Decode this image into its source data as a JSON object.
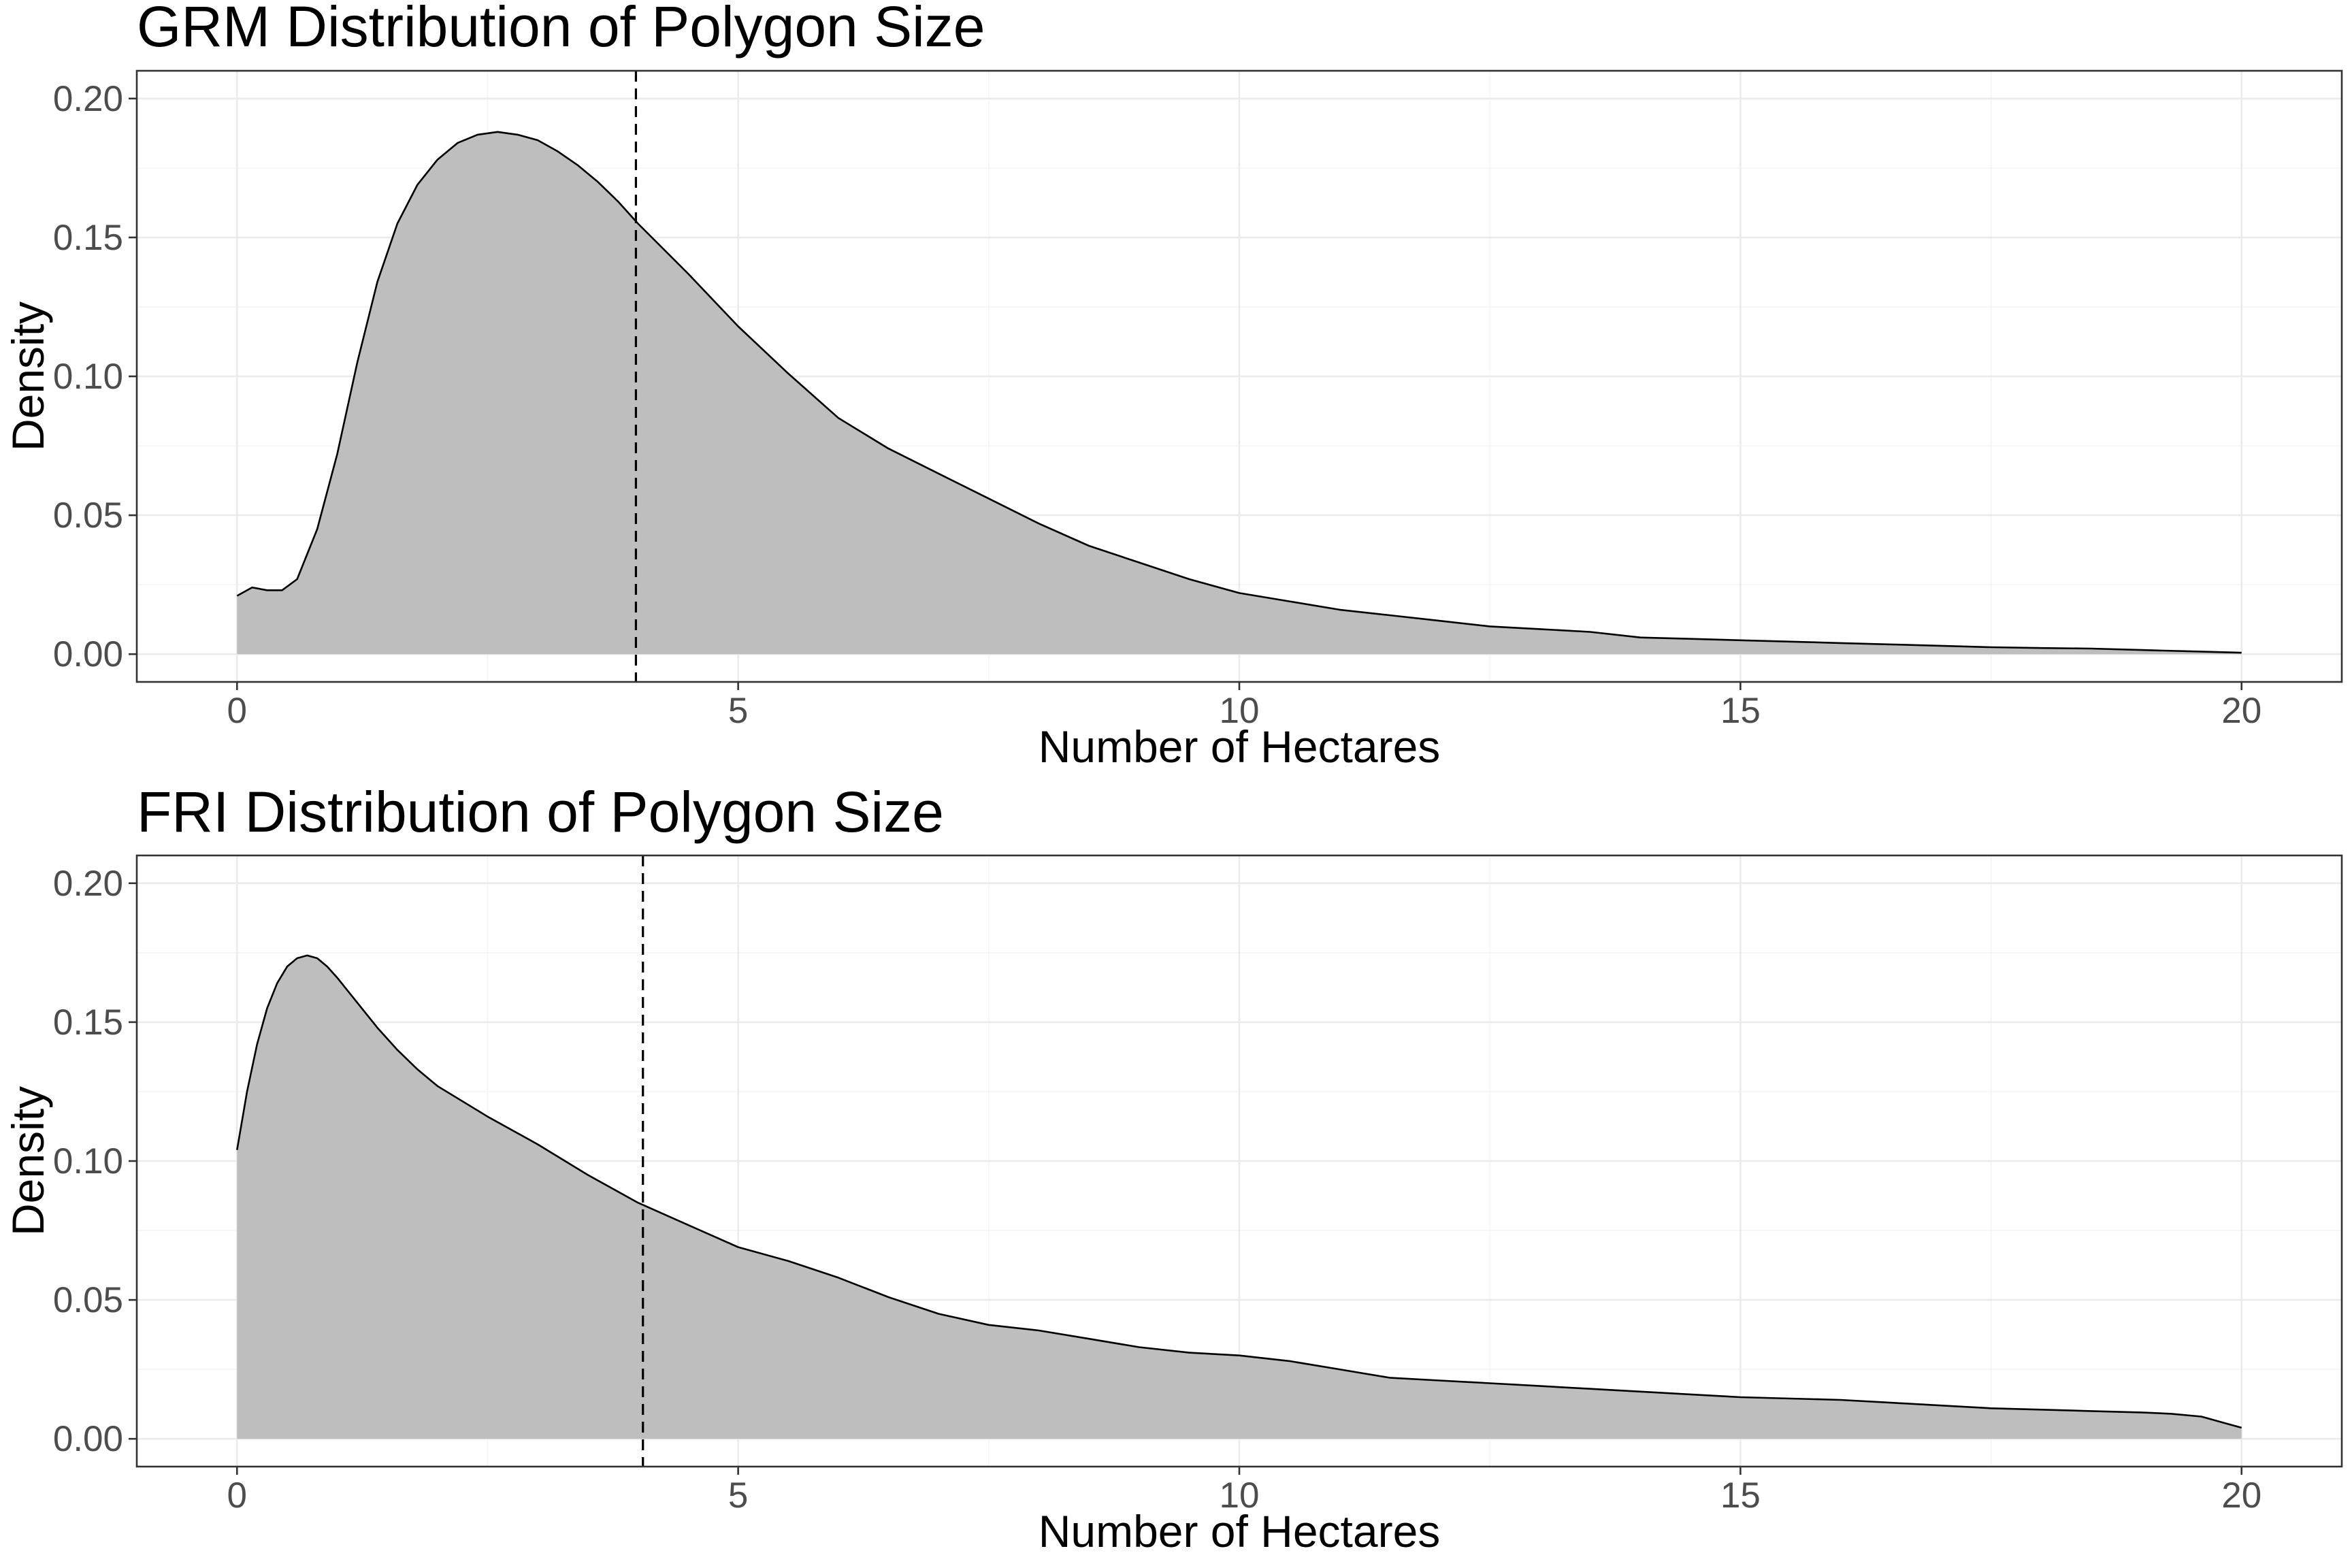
{
  "chart_data": [
    {
      "type": "area",
      "title": "GRM Distribution of Polygon Size",
      "xlabel": "Number of Hectares",
      "ylabel": "Density",
      "xlim": [
        -1,
        21
      ],
      "ylim": [
        -0.01,
        0.21
      ],
      "x_ticks": [
        0,
        5,
        10,
        15,
        20
      ],
      "x_tick_labels": [
        "0",
        "5",
        "10",
        "15",
        "20"
      ],
      "y_ticks": [
        0,
        0.05,
        0.1,
        0.15,
        0.2
      ],
      "y_tick_labels": [
        "0.00",
        "0.05",
        "0.10",
        "0.15",
        "0.20"
      ],
      "grid": true,
      "legend": "none",
      "fill_color": "#bebebe",
      "line_color": "#000000",
      "vline": 3.98,
      "series": [
        {
          "x": [
            0,
            0.15,
            0.3,
            0.45,
            0.6,
            0.8,
            1,
            1.2,
            1.4,
            1.6,
            1.8,
            2,
            2.2,
            2.4,
            2.6,
            2.8,
            3,
            3.2,
            3.4,
            3.6,
            3.8,
            4,
            4.5,
            5,
            5.5,
            6,
            6.5,
            7,
            7.5,
            8,
            8.5,
            9,
            9.5,
            10,
            10.5,
            11,
            11.5,
            12,
            12.5,
            13,
            13.5,
            14,
            14.5,
            15,
            15.5,
            16,
            16.5,
            17,
            17.5,
            18,
            18.5,
            19,
            19.5,
            20
          ],
          "y": [
            0.021,
            0.024,
            0.023,
            0.023,
            0.027,
            0.045,
            0.072,
            0.105,
            0.134,
            0.155,
            0.169,
            0.178,
            0.184,
            0.187,
            0.188,
            0.187,
            0.185,
            0.181,
            0.176,
            0.17,
            0.163,
            0.155,
            0.137,
            0.118,
            0.101,
            0.085,
            0.074,
            0.065,
            0.056,
            0.047,
            0.039,
            0.033,
            0.027,
            0.022,
            0.019,
            0.016,
            0.014,
            0.012,
            0.01,
            0.009,
            0.008,
            0.006,
            0.0055,
            0.005,
            0.0045,
            0.004,
            0.0035,
            0.003,
            0.0025,
            0.0022,
            0.002,
            0.0015,
            0.001,
            0.0005
          ]
        }
      ]
    },
    {
      "type": "area",
      "title": "FRI Distribution of Polygon Size",
      "xlabel": "Number of Hectares",
      "ylabel": "Density",
      "xlim": [
        -1,
        21
      ],
      "ylim": [
        -0.01,
        0.21
      ],
      "x_ticks": [
        0,
        5,
        10,
        15,
        20
      ],
      "x_tick_labels": [
        "0",
        "5",
        "10",
        "15",
        "20"
      ],
      "y_ticks": [
        0,
        0.05,
        0.1,
        0.15,
        0.2
      ],
      "y_tick_labels": [
        "0.00",
        "0.05",
        "0.10",
        "0.15",
        "0.20"
      ],
      "grid": true,
      "legend": "none",
      "fill_color": "#bebebe",
      "line_color": "#000000",
      "vline": 4.05,
      "series": [
        {
          "x": [
            0,
            0.1,
            0.2,
            0.3,
            0.4,
            0.5,
            0.6,
            0.7,
            0.8,
            0.9,
            1,
            1.2,
            1.4,
            1.6,
            1.8,
            2,
            2.5,
            3,
            3.5,
            4,
            4.5,
            5,
            5.5,
            6,
            6.5,
            7,
            7.5,
            8,
            8.5,
            9,
            9.5,
            10,
            10.5,
            11,
            11.5,
            12,
            12.5,
            13,
            13.5,
            14,
            14.5,
            15,
            15.5,
            16,
            16.5,
            17,
            17.5,
            18,
            18.5,
            19,
            19.3,
            19.6,
            19.8,
            20
          ],
          "y": [
            0.104,
            0.125,
            0.142,
            0.155,
            0.164,
            0.17,
            0.173,
            0.174,
            0.173,
            0.17,
            0.166,
            0.157,
            0.148,
            0.14,
            0.133,
            0.127,
            0.116,
            0.106,
            0.095,
            0.085,
            0.077,
            0.069,
            0.064,
            0.058,
            0.051,
            0.045,
            0.041,
            0.039,
            0.036,
            0.033,
            0.031,
            0.03,
            0.028,
            0.025,
            0.022,
            0.021,
            0.02,
            0.019,
            0.018,
            0.017,
            0.016,
            0.015,
            0.0145,
            0.014,
            0.013,
            0.012,
            0.011,
            0.0105,
            0.01,
            0.0095,
            0.009,
            0.008,
            0.006,
            0.004
          ]
        }
      ]
    }
  ]
}
